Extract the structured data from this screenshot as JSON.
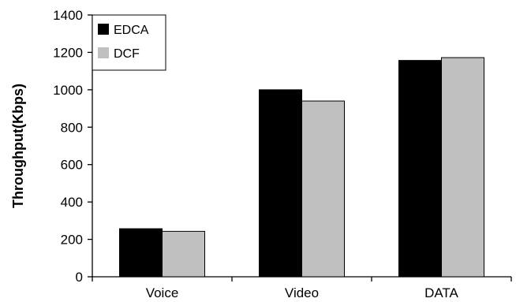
{
  "chart_data": {
    "type": "bar",
    "categories": [
      "Voice",
      "Video",
      "DATA"
    ],
    "series": [
      {
        "name": "EDCA",
        "color": "#000000",
        "values": [
          257,
          1000,
          1157
        ]
      },
      {
        "name": "DCF",
        "color": "#c0c0c0",
        "values": [
          243,
          940,
          1172
        ]
      }
    ],
    "title": "",
    "xlabel": "",
    "ylabel": "Throughput(Kbps)",
    "ylim": [
      0,
      1400
    ],
    "yticks": [
      0,
      200,
      400,
      600,
      800,
      1000,
      1200,
      1400
    ],
    "grid": false,
    "legend_position": "top-left"
  }
}
